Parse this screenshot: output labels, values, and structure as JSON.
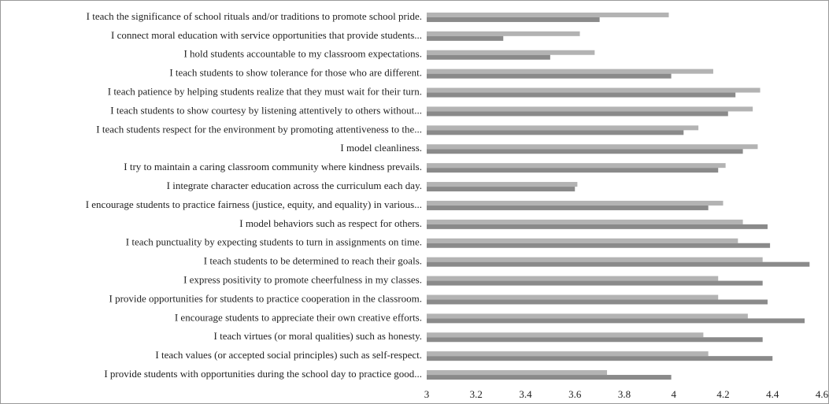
{
  "chart_data": {
    "type": "hbar",
    "categories": [
      "I teach the significance of school rituals and/or traditions to promote school pride.",
      "I connect moral education with service opportunities that provide students...",
      "I hold students accountable to my classroom expectations.",
      "I teach students to show tolerance for those who are different.",
      "I teach patience by helping students realize that they must wait for their turn.",
      "I teach students to show courtesy by listening attentively to others without...",
      "I teach students respect for the environment by promoting attentiveness to the...",
      "I model cleanliness.",
      "I try to maintain a caring classroom community where kindness prevails.",
      "I integrate character education across the curriculum each day.",
      "I encourage students to practice fairness (justice, equity, and equality) in various...",
      "I model behaviors such as respect for others.",
      "I teach punctuality by expecting students to turn in assignments on time.",
      "I teach students to be determined to reach their goals.",
      "I express positivity to promote cheerfulness in my classes.",
      "I provide opportunities for students to practice cooperation in the classroom.",
      "I encourage students to appreciate their own creative efforts.",
      "I teach virtues (or moral qualities) such as honesty.",
      "I teach values (or accepted social principles) such as self-respect.",
      "I provide students with opportunities during the school day to practice good..."
    ],
    "series": [
      {
        "color": "#b3b3b3",
        "values": [
          3.98,
          3.62,
          3.68,
          4.16,
          4.35,
          4.32,
          4.1,
          4.34,
          4.21,
          3.61,
          4.2,
          4.28,
          4.26,
          4.36,
          4.18,
          4.18,
          4.3,
          4.12,
          4.14,
          3.73
        ]
      },
      {
        "color": "#8a8a8a",
        "values": [
          3.7,
          3.31,
          3.5,
          3.99,
          4.25,
          4.22,
          4.04,
          4.28,
          4.18,
          3.6,
          4.14,
          4.38,
          4.39,
          4.55,
          4.36,
          4.38,
          4.53,
          4.36,
          4.4,
          3.99
        ]
      }
    ],
    "xlim": [
      3,
      4.6
    ],
    "xticks": [
      3,
      3.2,
      3.4,
      3.6,
      3.8,
      4,
      4.2,
      4.4,
      4.6
    ]
  }
}
